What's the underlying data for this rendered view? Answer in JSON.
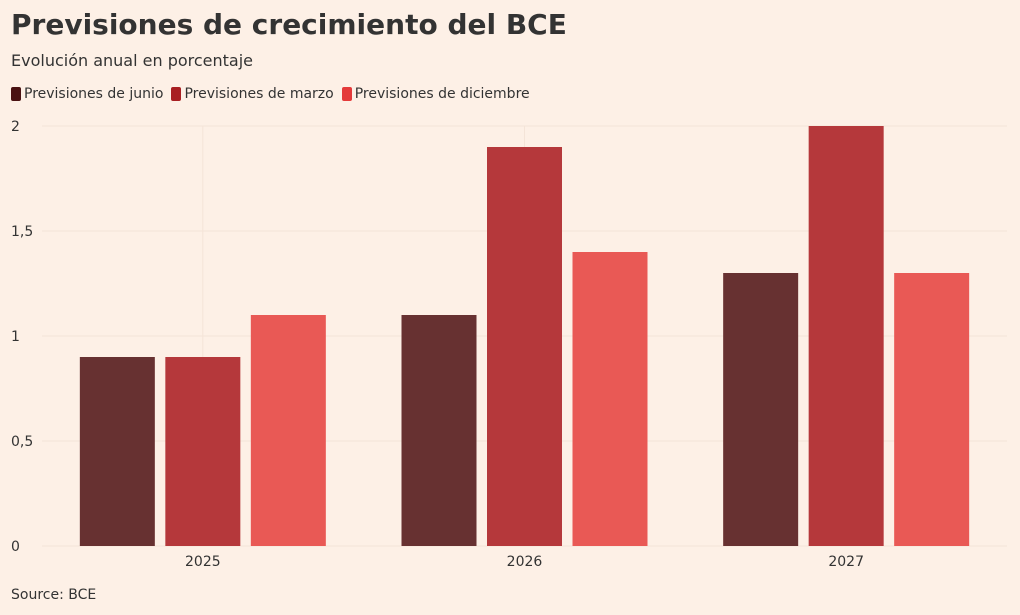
{
  "title": "Previsiones de crecimiento del BCE",
  "subtitle": "Evolución anual en porcentaje",
  "source": "Source: BCE",
  "colors": {
    "background": "#fdf0e6",
    "junio": "#673131",
    "marzo": "#b5383b",
    "diciembre": "#e95955",
    "legend_junio": "#4a1212",
    "legend_marzo": "#a81f22",
    "legend_diciembre": "#e43a3a",
    "grid": "#f4e4d8"
  },
  "legend": [
    {
      "label": "Previsiones de junio",
      "color": "#4a1212"
    },
    {
      "label": "Previsiones de marzo",
      "color": "#a81f22"
    },
    {
      "label": "Previsiones de diciembre",
      "color": "#e43a3a"
    }
  ],
  "chart_data": {
    "type": "bar",
    "categories": [
      "2025",
      "2026",
      "2027"
    ],
    "series": [
      {
        "name": "Previsiones de junio",
        "values": [
          0.9,
          1.1,
          1.3
        ],
        "color": "#673131"
      },
      {
        "name": "Previsiones de marzo",
        "values": [
          0.9,
          1.9,
          2.0
        ],
        "color": "#b5383b"
      },
      {
        "name": "Previsiones de diciembre",
        "values": [
          1.1,
          1.4,
          1.3
        ],
        "color": "#e95955"
      }
    ],
    "ylim": [
      0,
      2
    ],
    "yticks": [
      {
        "value": 0,
        "label": "0"
      },
      {
        "value": 0.5,
        "label": "0,5"
      },
      {
        "value": 1,
        "label": "1"
      },
      {
        "value": 1.5,
        "label": "1,5"
      },
      {
        "value": 2,
        "label": "2"
      }
    ],
    "grid": true,
    "legend_position": "top-left"
  }
}
